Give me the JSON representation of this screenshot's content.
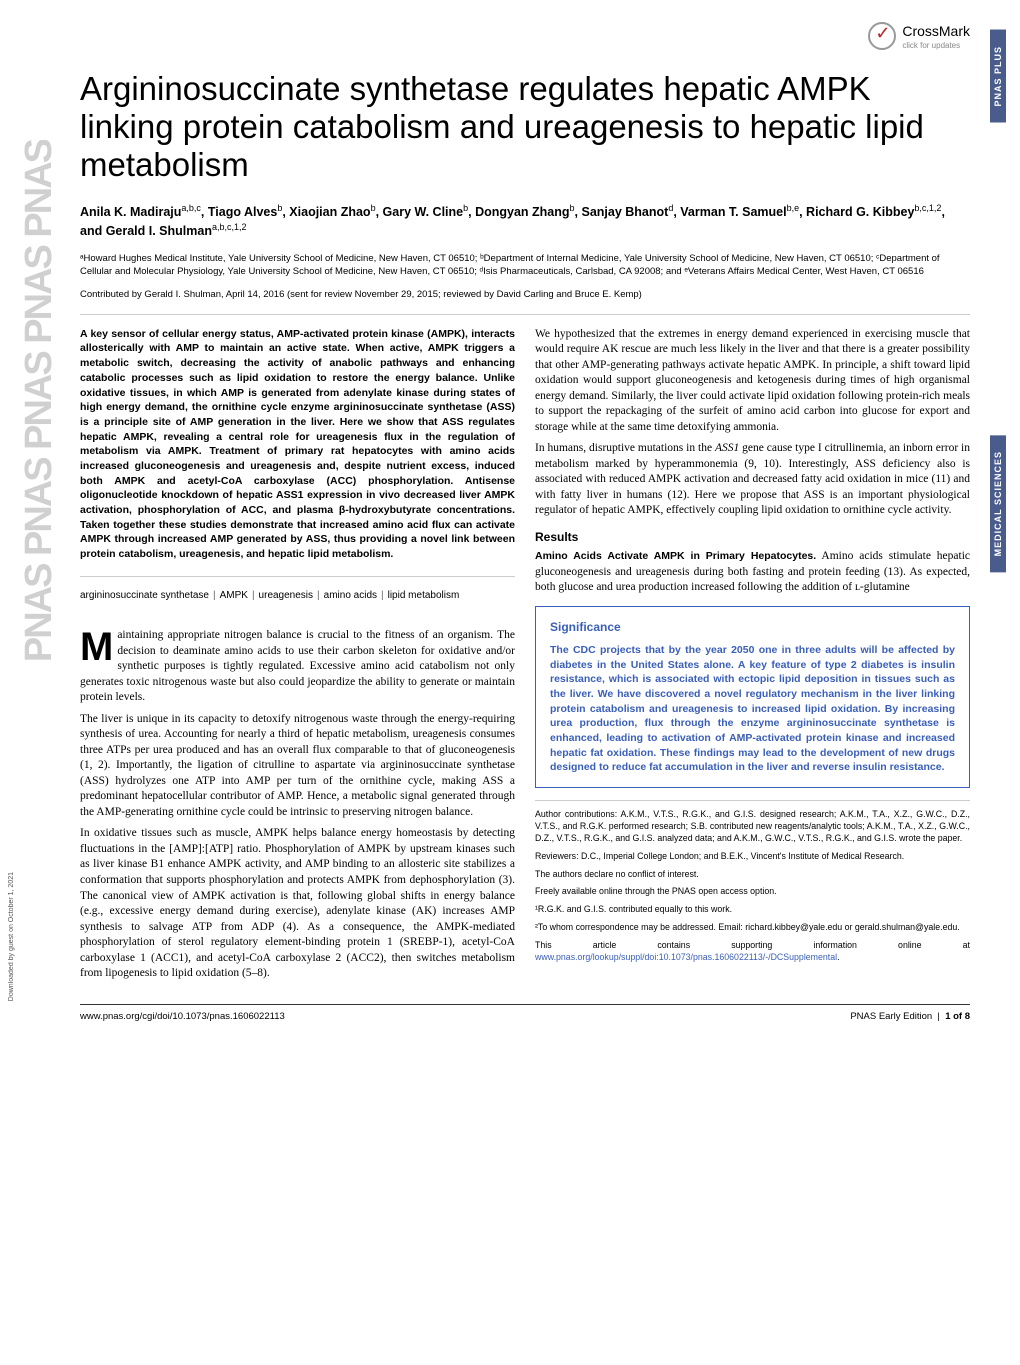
{
  "crossmark": {
    "label": "CrossMark",
    "sub": "click for updates"
  },
  "side_tabs": {
    "plus": "PNAS PLUS",
    "section": "MEDICAL SCIENCES"
  },
  "pnas_repeat": "PNAS  PNAS  PNAS  PNAS  PNAS",
  "download_note": "Downloaded by guest on October 1, 2021",
  "title": "Argininosuccinate synthetase regulates hepatic AMPK linking protein catabolism and ureagenesis to hepatic lipid metabolism",
  "authors_html": "Anila K. Madiraju<sup>a,b,c</sup>, Tiago Alves<sup>b</sup>, Xiaojian Zhao<sup>b</sup>, Gary W. Cline<sup>b</sup>, Dongyan Zhang<sup>b</sup>, Sanjay Bhanot<sup>d</sup>, Varman T. Samuel<sup>b,e</sup>, Richard G. Kibbey<sup>b,c,1,2</sup>, and Gerald I. Shulman<sup>a,b,c,1,2</sup>",
  "affiliations": "ᵃHoward Hughes Medical Institute, Yale University School of Medicine, New Haven, CT 06510; ᵇDepartment of Internal Medicine, Yale University School of Medicine, New Haven, CT 06510; ᶜDepartment of Cellular and Molecular Physiology, Yale University School of Medicine, New Haven, CT 06510; ᵈIsis Pharmaceuticals, Carlsbad, CA 92008; and ᵉVeterans Affairs Medical Center, West Haven, CT 06516",
  "contributed": "Contributed by Gerald I. Shulman, April 14, 2016 (sent for review November 29, 2015; reviewed by David Carling and Bruce E. Kemp)",
  "abstract": "A key sensor of cellular energy status, AMP-activated protein kinase (AMPK), interacts allosterically with AMP to maintain an active state. When active, AMPK triggers a metabolic switch, decreasing the activity of anabolic pathways and enhancing catabolic processes such as lipid oxidation to restore the energy balance. Unlike oxidative tissues, in which AMP is generated from adenylate kinase during states of high energy demand, the ornithine cycle enzyme argininosuccinate synthetase (ASS) is a principle site of AMP generation in the liver. Here we show that ASS regulates hepatic AMPK, revealing a central role for ureagenesis flux in the regulation of metabolism via AMPK. Treatment of primary rat hepatocytes with amino acids increased gluconeogenesis and ureagenesis and, despite nutrient excess, induced both AMPK and acetyl-CoA carboxylase (ACC) phosphorylation. Antisense oligonucleotide knockdown of hepatic ASS1 expression in vivo decreased liver AMPK activation, phosphorylation of ACC, and plasma β-hydroxybutyrate concentrations. Taken together these studies demonstrate that increased amino acid flux can activate AMPK through increased AMP generated by ASS, thus providing a novel link between protein catabolism, ureagenesis, and hepatic lipid metabolism.",
  "keywords": [
    "argininosuccinate synthetase",
    "AMPK",
    "ureagenesis",
    "amino acids",
    "lipid metabolism"
  ],
  "left_body": {
    "p1_first": "aintaining appropriate nitrogen balance is crucial to the fitness of an organism. The decision to deaminate amino acids to use their carbon skeleton for oxidative and/or synthetic purposes is tightly regulated. Excessive amino acid catabolism not only generates toxic nitrogenous waste but also could jeopardize the ability to generate or maintain protein levels.",
    "p2": "The liver is unique in its capacity to detoxify nitrogenous waste through the energy-requiring synthesis of urea. Accounting for nearly a third of hepatic metabolism, ureagenesis consumes three ATPs per urea produced and has an overall flux comparable to that of gluconeogenesis (1, 2). Importantly, the ligation of citrulline to aspartate via argininosuccinate synthetase (ASS) hydrolyzes one ATP into AMP per turn of the ornithine cycle, making ASS a predominant hepatocellular contributor of AMP. Hence, a metabolic signal generated through the AMP-generating ornithine cycle could be intrinsic to preserving nitrogen balance.",
    "p3": "In oxidative tissues such as muscle, AMPK helps balance energy homeostasis by detecting fluctuations in the [AMP]:[ATP] ratio. Phosphorylation of AMPK by upstream kinases such as liver kinase B1 enhance AMPK activity, and AMP binding to an allosteric site stabilizes a conformation that supports phosphorylation and protects AMPK from dephosphorylation (3). The canonical view of AMPK activation is that, following global shifts in energy balance (e.g., excessive energy demand during exercise), adenylate kinase (AK) increases AMP synthesis to salvage ATP from ADP (4). As a consequence, the AMPK-mediated phosphorylation of sterol regulatory element-binding protein 1 (SREBP-1), acetyl-CoA carboxylase 1 (ACC1), and acetyl-CoA carboxylase 2 (ACC2), then switches metabolism from lipogenesis to lipid oxidation (5–8)."
  },
  "right_body": {
    "p1": "We hypothesized that the extremes in energy demand experienced in exercising muscle that would require AK rescue are much less likely in the liver and that there is a greater possibility that other AMP-generating pathways activate hepatic AMPK. In principle, a shift toward lipid oxidation would support gluconeogenesis and ketogenesis during times of high organismal energy demand. Similarly, the liver could activate lipid oxidation following protein-rich meals to support the repackaging of the surfeit of amino acid carbon into glucose for export and storage while at the same time detoxifying ammonia.",
    "p2_a": "In humans, disruptive mutations in the ",
    "p2_gene": "ASS1",
    "p2_b": " gene cause type I citrullinemia, an inborn error in metabolism marked by hyperammonemia (9, 10). Interestingly, ASS deficiency also is associated with reduced AMPK activation and decreased fatty acid oxidation in mice (11) and with fatty liver in humans (12). Here we propose that ASS is an important physiological regulator of hepatic AMPK, effectively coupling lipid oxidation to ornithine cycle activity.",
    "results_head": "Results",
    "sub_head": "Amino Acids Activate AMPK in Primary Hepatocytes.",
    "sub_body": " Amino acids stimulate hepatic gluconeogenesis and ureagenesis during both fasting and protein feeding (13). As expected, both glucose and urea production increased following the addition of ʟ-glutamine"
  },
  "significance": {
    "head": "Significance",
    "body": "The CDC projects that by the year 2050 one in three adults will be affected by diabetes in the United States alone. A key feature of type 2 diabetes is insulin resistance, which is associated with ectopic lipid deposition in tissues such as the liver. We have discovered a novel regulatory mechanism in the liver linking protein catabolism and ureagenesis to increased lipid oxidation. By increasing urea production, flux through the enzyme argininosuccinate synthetase is enhanced, leading to activation of AMP-activated protein kinase and increased hepatic fat oxidation. These findings may lead to the development of new drugs designed to reduce fat accumulation in the liver and reverse insulin resistance."
  },
  "footnotes": {
    "contrib": "Author contributions: A.K.M., V.T.S., R.G.K., and G.I.S. designed research; A.K.M., T.A., X.Z., G.W.C., D.Z., V.T.S., and R.G.K. performed research; S.B. contributed new reagents/analytic tools; A.K.M., T.A., X.Z., G.W.C., D.Z., V.T.S., R.G.K., and G.I.S. analyzed data; and A.K.M., G.W.C., V.T.S., R.G.K., and G.I.S. wrote the paper.",
    "reviewers": "Reviewers: D.C., Imperial College London; and B.E.K., Vincent's Institute of Medical Research.",
    "conflict": "The authors declare no conflict of interest.",
    "openaccess": "Freely available online through the PNAS open access option.",
    "equal": "¹R.G.K. and G.I.S. contributed equally to this work.",
    "corr": "²To whom correspondence may be addressed. Email: richard.kibbey@yale.edu or gerald.shulman@yale.edu.",
    "support_a": "This article contains supporting information online at ",
    "support_link": "www.pnas.org/lookup/suppl/doi:10.1073/pnas.1606022113/-/DCSupplemental",
    "support_b": "."
  },
  "footer": {
    "doi": "www.pnas.org/cgi/doi/10.1073/pnas.1606022113",
    "edition": "PNAS Early Edition",
    "page": "1 of 8"
  },
  "colors": {
    "accent_blue": "#3a5fb8",
    "side_tab_bg": "#4a5c8b",
    "side_text_gray": "#d0d0d0"
  }
}
